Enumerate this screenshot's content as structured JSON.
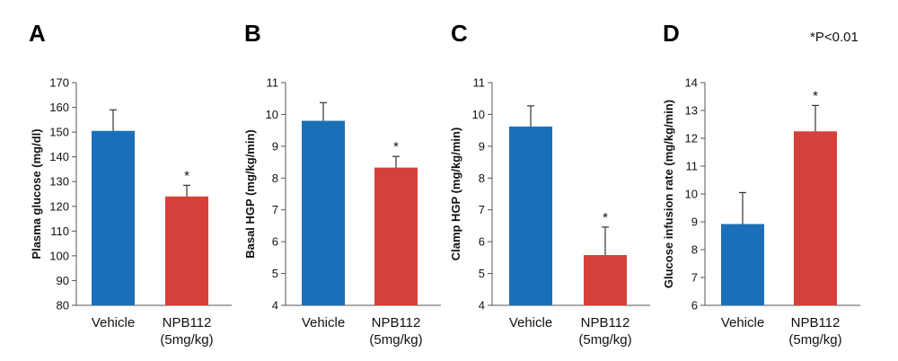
{
  "significance_note": "*P<0.01",
  "colors": {
    "vehicle": "#1a70b8",
    "npb112": "#d5403a",
    "axis": "#555555"
  },
  "chart_data": [
    {
      "panel": "A",
      "type": "bar",
      "ylabel": "Plasma glucose (mg/dl)",
      "ylim": [
        80,
        170
      ],
      "yticks": [
        80,
        90,
        100,
        110,
        120,
        130,
        140,
        150,
        160,
        170
      ],
      "categories": [
        [
          "Vehicle"
        ],
        [
          "NPB112",
          "(5mg/kg)"
        ]
      ],
      "values": [
        150.5,
        124
      ],
      "errors": [
        8.5,
        4.5
      ],
      "significant": [
        false,
        true
      ]
    },
    {
      "panel": "B",
      "type": "bar",
      "ylabel": "Basal HGP (mg/kg/min)",
      "ylim": [
        4,
        11
      ],
      "yticks": [
        4,
        5,
        6,
        7,
        8,
        9,
        10,
        11
      ],
      "categories": [
        [
          "Vehicle"
        ],
        [
          "NPB112",
          "(5mg/kg)"
        ]
      ],
      "values": [
        9.8,
        8.33
      ],
      "errors": [
        0.57,
        0.35
      ],
      "significant": [
        false,
        true
      ]
    },
    {
      "panel": "C",
      "type": "bar",
      "ylabel": "Clamp HGP (mg/kg/min)",
      "ylim": [
        4,
        11
      ],
      "yticks": [
        4,
        5,
        6,
        7,
        8,
        9,
        10,
        11
      ],
      "categories": [
        [
          "Vehicle"
        ],
        [
          "NPB112",
          "(5mg/kg)"
        ]
      ],
      "values": [
        9.62,
        5.58
      ],
      "errors": [
        0.65,
        0.88
      ],
      "significant": [
        false,
        true
      ]
    },
    {
      "panel": "D",
      "type": "bar",
      "ylabel": "Glucose infusion rate (mg/kg/min)",
      "ylim": [
        6,
        14
      ],
      "yticks": [
        6,
        7,
        8,
        9,
        10,
        11,
        12,
        13,
        14
      ],
      "categories": [
        [
          "Vehicle"
        ],
        [
          "NPB112",
          "(5mg/kg)"
        ]
      ],
      "values": [
        8.92,
        12.25
      ],
      "errors": [
        1.13,
        0.93
      ],
      "significant": [
        false,
        true
      ]
    }
  ]
}
